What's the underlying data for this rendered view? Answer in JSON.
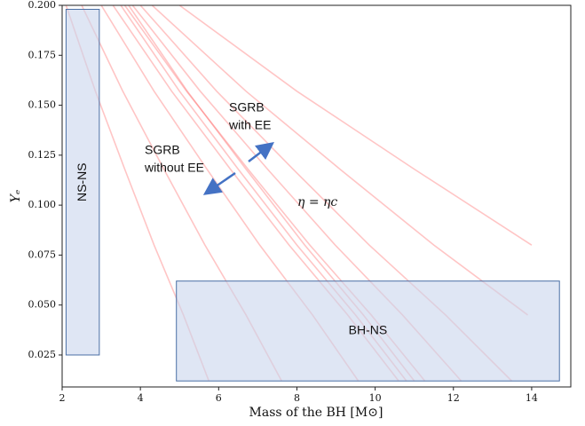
{
  "chart_data": {
    "type": "line",
    "x_label": "Mass of the BH [M⊙]",
    "y_label": "Yₑ",
    "xlim": [
      2,
      15
    ],
    "ylim": [
      0.009,
      0.2
    ],
    "xticks": [
      2,
      4,
      6,
      8,
      10,
      12,
      14
    ],
    "yticks": [
      0.025,
      {
        "value": 0.05,
        "label": "0.050"
      },
      0.075,
      {
        "value": 0.1,
        "label": "0.100"
      },
      0.125,
      {
        "value": 0.15,
        "label": "0.150"
      },
      0.175,
      {
        "value": 0.2,
        "label": "0.200"
      }
    ],
    "line_color": "#ff5a5a",
    "series": [
      {
        "x": [
          2.1,
          2.85,
          3.6,
          4.35,
          5.1,
          5.75
        ],
        "values": [
          0.2,
          0.157,
          0.118,
          0.08,
          0.045,
          0.012
        ]
      },
      {
        "x": [
          2.5,
          3.55,
          4.6,
          5.65,
          6.7,
          7.61
        ],
        "values": [
          0.2,
          0.157,
          0.118,
          0.08,
          0.045,
          0.012
        ]
      },
      {
        "x": [
          3.0,
          4.35,
          5.7,
          7.05,
          8.4,
          9.57
        ],
        "values": [
          0.2,
          0.157,
          0.118,
          0.08,
          0.045,
          0.012
        ]
      },
      {
        "x": [
          3.3,
          4.8,
          6.3,
          7.8,
          9.3,
          10.6
        ],
        "values": [
          0.2,
          0.157,
          0.118,
          0.08,
          0.045,
          0.012
        ]
      },
      {
        "x": [
          3.5,
          5.0,
          6.5,
          8.0,
          9.5,
          10.8
        ],
        "values": [
          0.2,
          0.157,
          0.118,
          0.08,
          0.045,
          0.012
        ]
      },
      {
        "x": [
          3.6,
          5.18,
          6.75,
          8.33,
          9.9,
          11.27
        ],
        "values": [
          0.2,
          0.157,
          0.118,
          0.08,
          0.045,
          0.012
        ]
      },
      {
        "x": [
          3.7,
          5.2,
          6.7,
          8.2,
          9.7,
          11.0
        ],
        "values": [
          0.2,
          0.157,
          0.118,
          0.08,
          0.045,
          0.012
        ]
      },
      {
        "x": [
          3.8,
          5.53,
          7.25,
          8.98,
          10.7,
          12.2
        ],
        "values": [
          0.2,
          0.157,
          0.118,
          0.08,
          0.045,
          0.012
        ]
      },
      {
        "x": [
          4.0,
          5.95,
          7.9,
          9.85,
          11.8,
          13.49
        ],
        "values": [
          0.2,
          0.157,
          0.118,
          0.08,
          0.045,
          0.012
        ]
      },
      {
        "x": [
          4.3,
          6.7,
          9.1,
          11.5,
          13.9
        ],
        "values": [
          0.2,
          0.157,
          0.118,
          0.08,
          0.045
        ]
      },
      {
        "x": [
          5.0,
          8.0,
          11.0,
          14.0
        ],
        "values": [
          0.2,
          0.157,
          0.118,
          0.08
        ]
      }
    ],
    "regions": [
      {
        "label": "NS-NS",
        "x": [
          2.1,
          2.95
        ],
        "y": [
          0.025,
          0.198
        ]
      },
      {
        "label": "BH-NS",
        "x": [
          4.92,
          14.71
        ],
        "y": [
          0.012,
          0.062
        ]
      }
    ],
    "annotations": [
      {
        "lines": [
          "SGRB",
          "with EE"
        ]
      },
      {
        "lines": [
          "SGRB",
          "without EE"
        ]
      },
      {
        "lines": [
          "η = ηc"
        ]
      }
    ]
  }
}
